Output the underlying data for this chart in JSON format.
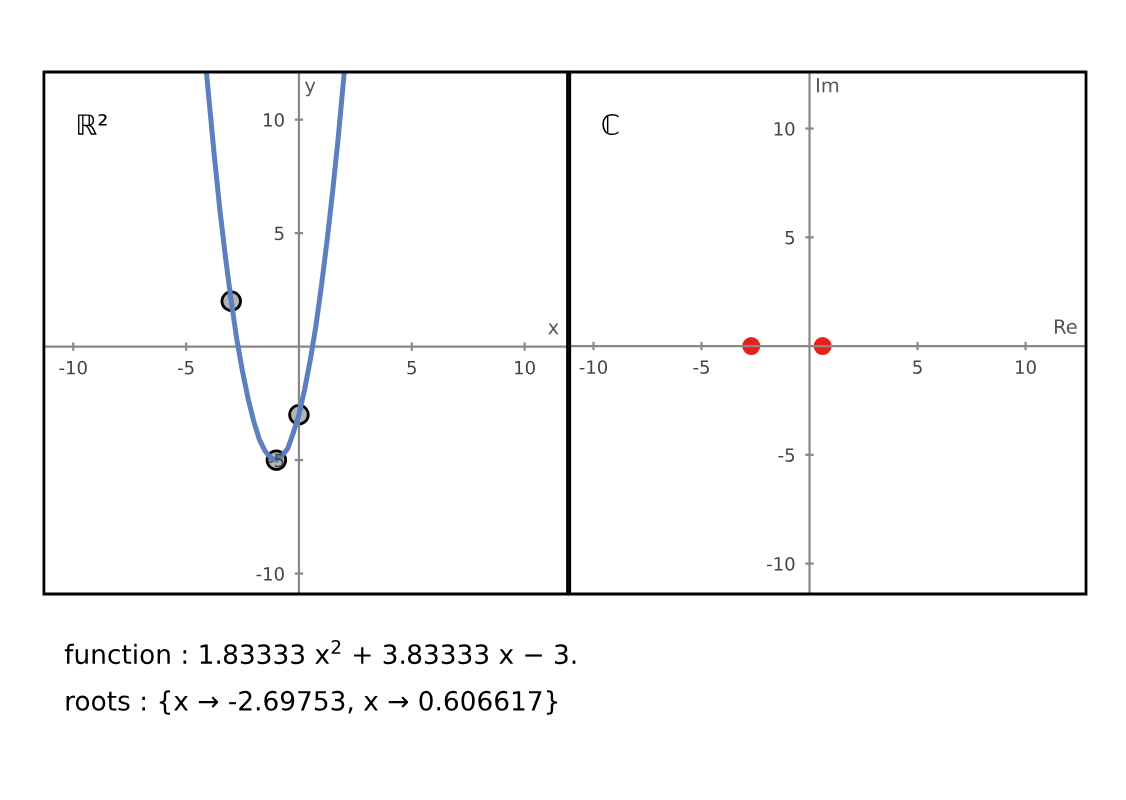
{
  "chart_data": [
    {
      "type": "line",
      "xlabel": "x",
      "ylabel": "y",
      "xlim": [
        -11.3,
        11.9
      ],
      "ylim": [
        -10.9,
        12.1
      ],
      "xticks": [
        -10,
        -5,
        5,
        10
      ],
      "yticks": [
        -10,
        -5,
        5,
        10
      ],
      "grid": false,
      "annotations": [
        "ℝ²"
      ],
      "series": [
        {
          "color": "#5b7fbf",
          "marker": "none",
          "x": [
            -4.1,
            -3.75,
            -3.5,
            -3.25,
            -3,
            -2.75,
            -2.5,
            -2.25,
            -2,
            -1.75,
            -1.5,
            -1.25,
            -1,
            -0.75,
            -0.5,
            -0.25,
            0,
            0.25,
            0.5,
            0.75,
            1,
            1.25,
            1.5,
            1.75,
            2
          ],
          "values": [
            12.1,
            8.4,
            6,
            3.9,
            2,
            0.3,
            -1.1,
            -2.3,
            -3.3,
            -4.1,
            -4.6,
            -4.9,
            -5,
            -4.8,
            -4.5,
            -3.8,
            -3,
            -1.9,
            -0.6,
            0.9,
            2.7,
            4.7,
            6.9,
            9.3,
            12
          ]
        },
        {
          "type": "scatter",
          "color": "#b4b4b4",
          "marker": "circle",
          "x": [
            -3,
            -1,
            0
          ],
          "values": [
            2,
            -5,
            -3
          ]
        }
      ]
    },
    {
      "type": "scatter",
      "xlabel": "Re",
      "ylabel": "Im",
      "xlim": [
        -11.1,
        12.8
      ],
      "ylim": [
        -11.4,
        12.6
      ],
      "xticks": [
        -10,
        -5,
        5,
        10
      ],
      "yticks": [
        -10,
        -5,
        5,
        10
      ],
      "grid": false,
      "annotations": [
        "ℂ",
        "function : 1.83333 x$^{2}$ + 3.83333 x − 3.",
        "roots : {x → -2.69753, x → 0.606617}"
      ],
      "series": [
        {
          "color": "#e8201c",
          "marker": "circle",
          "x": [
            -2.69753,
            0.606617
          ],
          "values": [
            0,
            0
          ]
        }
      ]
    }
  ]
}
